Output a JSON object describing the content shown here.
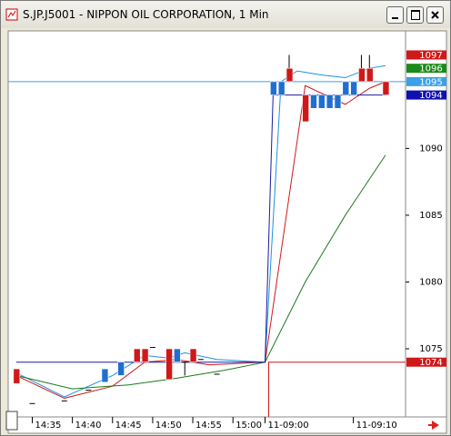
{
  "window": {
    "title": "S.JP.J5001 - NIPPON OIL CORPORATION, 1 Min"
  },
  "chart_data": {
    "type": "candlestick",
    "ylim": [
      1069.9,
      1098.8
    ],
    "yticks": [
      1075,
      1080,
      1085,
      1090
    ],
    "xlim": [
      -1,
      48.5
    ],
    "xticks": [
      {
        "value": 2,
        "label": "14:35"
      },
      {
        "value": 7,
        "label": "14:40"
      },
      {
        "value": 12,
        "label": "14:45"
      },
      {
        "value": 17,
        "label": "14:50"
      },
      {
        "value": 22,
        "label": "14:55"
      },
      {
        "value": 27,
        "label": "15:00"
      },
      {
        "value": 31,
        "label": "11-09:00"
      },
      {
        "value": 42,
        "label": "11-09:10"
      }
    ],
    "up_color": "#1f6fd0",
    "down_color": "#d01818",
    "candles": [
      {
        "x": 0,
        "open": 1073.5,
        "high": 1073.5,
        "low": 1072.4,
        "close": 1072.4
      },
      {
        "x": 2,
        "open": 1070.9,
        "high": 1070.9,
        "low": 1070.9,
        "close": 1070.9
      },
      {
        "x": 6,
        "open": 1071.1,
        "high": 1071.1,
        "low": 1071.1,
        "close": 1071.1
      },
      {
        "x": 9,
        "open": 1071.9,
        "high": 1071.9,
        "low": 1071.9,
        "close": 1071.9
      },
      {
        "x": 11,
        "open": 1072.5,
        "high": 1073.5,
        "low": 1072.5,
        "close": 1073.5
      },
      {
        "x": 13,
        "open": 1073,
        "high": 1074,
        "low": 1073,
        "close": 1074
      },
      {
        "x": 15,
        "open": 1075,
        "high": 1075,
        "low": 1074,
        "close": 1074
      },
      {
        "x": 16,
        "open": 1075,
        "high": 1075,
        "low": 1074,
        "close": 1074
      },
      {
        "x": 17,
        "open": 1075.1,
        "high": 1075.1,
        "low": 1075.1,
        "close": 1075.1
      },
      {
        "x": 19,
        "open": 1075,
        "high": 1075,
        "low": 1072.7,
        "close": 1072.7
      },
      {
        "x": 20,
        "open": 1074,
        "high": 1075,
        "low": 1074,
        "close": 1075
      },
      {
        "x": 21,
        "open": 1074,
        "high": 1074,
        "low": 1073,
        "close": 1074
      },
      {
        "x": 22,
        "open": 1075,
        "high": 1075,
        "low": 1074,
        "close": 1074
      },
      {
        "x": 23,
        "open": 1074.2,
        "high": 1074.2,
        "low": 1074.2,
        "close": 1074.2
      },
      {
        "x": 25,
        "open": 1073.1,
        "high": 1073.1,
        "low": 1073.1,
        "close": 1073.1
      },
      {
        "x": 32,
        "open": 1094,
        "high": 1095,
        "low": 1094,
        "close": 1095
      },
      {
        "x": 33,
        "open": 1094,
        "high": 1095,
        "low": 1094,
        "close": 1095
      },
      {
        "x": 34,
        "open": 1096,
        "high": 1097,
        "low": 1095,
        "close": 1095
      },
      {
        "x": 36,
        "open": 1094,
        "high": 1094,
        "low": 1092,
        "close": 1092
      },
      {
        "x": 37,
        "open": 1093,
        "high": 1094,
        "low": 1093,
        "close": 1094
      },
      {
        "x": 38,
        "open": 1093,
        "high": 1094,
        "low": 1093,
        "close": 1094
      },
      {
        "x": 39,
        "open": 1093,
        "high": 1094,
        "low": 1093,
        "close": 1094
      },
      {
        "x": 40,
        "open": 1093,
        "high": 1094,
        "low": 1093,
        "close": 1094
      },
      {
        "x": 41,
        "open": 1094,
        "high": 1095,
        "low": 1094,
        "close": 1095
      },
      {
        "x": 42,
        "open": 1094,
        "high": 1095,
        "low": 1094,
        "close": 1095
      },
      {
        "x": 43,
        "open": 1096,
        "high": 1097,
        "low": 1095,
        "close": 1095
      },
      {
        "x": 44,
        "open": 1096,
        "high": 1097,
        "low": 1095,
        "close": 1095
      },
      {
        "x": 46,
        "open": 1095,
        "high": 1095,
        "low": 1094,
        "close": 1094
      }
    ],
    "series": [
      {
        "color": "#1e90e0",
        "x": [
          0,
          6,
          12,
          16,
          19,
          21,
          25,
          31,
          33,
          35,
          38,
          41,
          44,
          46
        ],
        "values": [
          1073.2,
          1071.4,
          1073,
          1074.5,
          1074.3,
          1074.7,
          1074.2,
          1074,
          1095,
          1095.8,
          1095.5,
          1095.3,
          1096,
          1096.2
        ]
      },
      {
        "color": "#d01818",
        "x": [
          0,
          6,
          12,
          16,
          20,
          24,
          31,
          36,
          41,
          44,
          46
        ],
        "values": [
          1073,
          1071.3,
          1072.2,
          1074,
          1074.2,
          1073.8,
          1074,
          1094.7,
          1093.3,
          1094.5,
          1095
        ]
      },
      {
        "color": "#1a7a1a",
        "x": [
          0,
          7,
          14,
          20,
          26,
          31,
          36,
          41,
          46
        ],
        "values": [
          1073,
          1072,
          1072.3,
          1072.8,
          1073.4,
          1074,
          1080,
          1085,
          1089.5
        ]
      },
      {
        "color": "#1a1aa0",
        "x": [
          0,
          31,
          32,
          46
        ],
        "values": [
          1074,
          1074,
          1094,
          1094
        ]
      }
    ],
    "price_labels": [
      {
        "value": 1097,
        "color": "#d01818"
      },
      {
        "value": 1096,
        "color": "#1a8a1a"
      },
      {
        "value": 1095,
        "color": "#3aa0e8"
      },
      {
        "value": 1094,
        "color": "#1010b0"
      },
      {
        "value": 1074,
        "color": "#d01818"
      }
    ]
  }
}
